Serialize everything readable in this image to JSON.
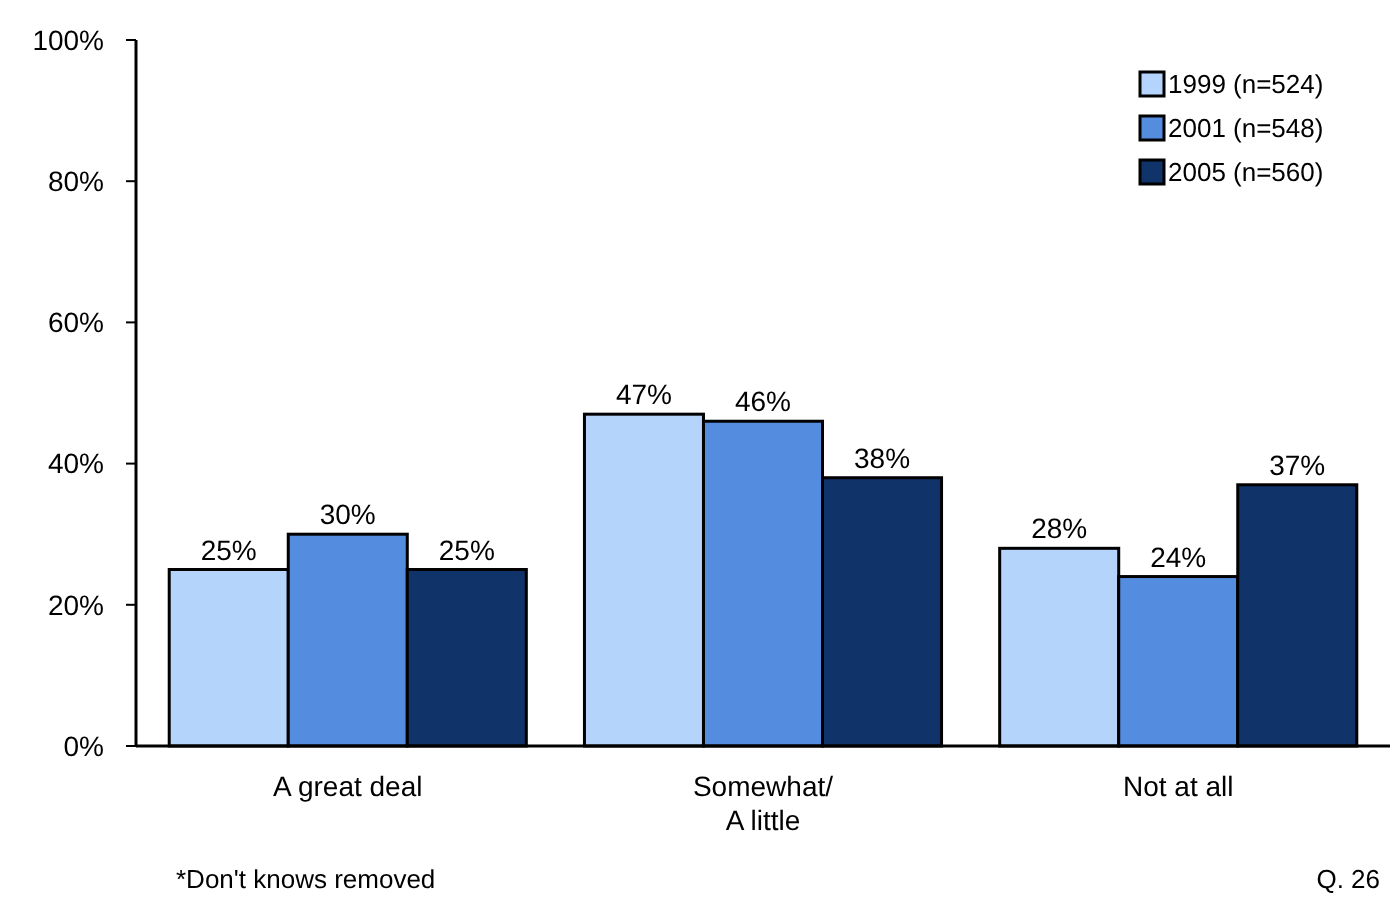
{
  "chart_data": {
    "type": "bar",
    "categories": [
      "A great deal",
      "Somewhat/\nA little",
      "Not at all"
    ],
    "series": [
      {
        "name": "1999 (n=524)",
        "color": "#b4d4fc",
        "values": [
          25,
          47,
          28
        ],
        "value_labels": [
          "25%",
          "47%",
          "28%"
        ]
      },
      {
        "name": "2001 (n=548)",
        "color": "#548ce0",
        "values": [
          30,
          46,
          24
        ],
        "value_labels": [
          "30%",
          "46%",
          "24%"
        ]
      },
      {
        "name": "2005 (n=560)",
        "color": "#10336a",
        "values": [
          25,
          38,
          37
        ],
        "value_labels": [
          "25%",
          "38%",
          "37%"
        ]
      }
    ],
    "ylim": [
      0,
      100
    ],
    "yticks": [
      {
        "value": 0,
        "label": "0%"
      },
      {
        "value": 20,
        "label": "20%"
      },
      {
        "value": 40,
        "label": "40%"
      },
      {
        "value": 60,
        "label": "60%"
      },
      {
        "value": 80,
        "label": "80%"
      },
      {
        "value": 100,
        "label": "100%"
      }
    ],
    "grid": false,
    "legend": "top right",
    "annotations": [
      "*Don't knows removed",
      "Q. 26"
    ]
  }
}
